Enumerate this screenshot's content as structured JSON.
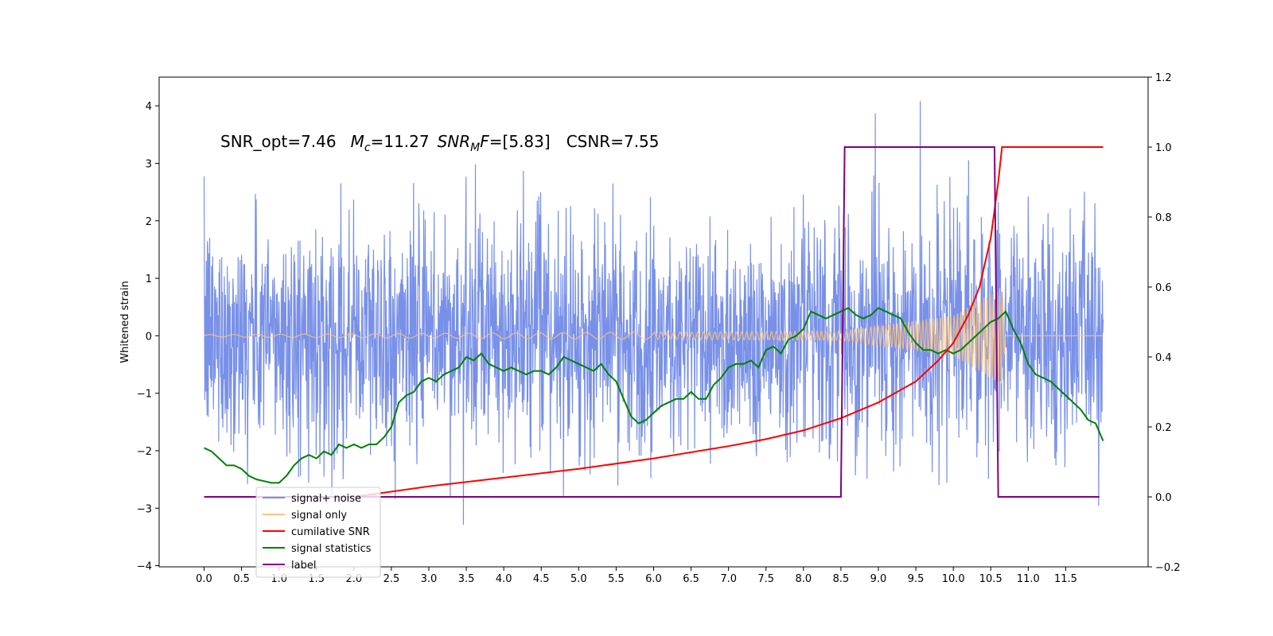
{
  "chart_data": {
    "type": "line",
    "annotation": {
      "snr_opt": "SNR_opt=7.46",
      "mc_var": "M",
      "mc_sub": "c",
      "mc_value": "=11.27",
      "snrmf_var": "SNR",
      "snrmf_sub": "M",
      "snrmf_var2": "F",
      "snrmf_value": "=[5.83]",
      "csnr": "CSNR=7.55"
    },
    "ylabel_left": "Whitened strain",
    "x_ticks": [
      "0.0",
      "0.5",
      "1.0",
      "1.5",
      "2.0",
      "2.5",
      "3.0",
      "3.5",
      "4.0",
      "4.5",
      "5.0",
      "5.5",
      "6.0",
      "6.5",
      "7.0",
      "7.5",
      "8.0",
      "8.5",
      "9.0",
      "9.5",
      "10.0",
      "10.5",
      "11.0",
      "11.5"
    ],
    "xlim": [
      -0.6,
      12.6
    ],
    "y_left_ticks": [
      "4",
      "3",
      "2",
      "1",
      "0",
      "−1",
      "−2",
      "−3",
      "−4"
    ],
    "ylim_left": [
      -4.02,
      4.5
    ],
    "y_right_ticks": [
      "1.2",
      "1.0",
      "0.8",
      "0.6",
      "0.4",
      "0.2",
      "0.0",
      "−0.2"
    ],
    "ylim_right": [
      -0.2,
      1.2
    ],
    "grid": false,
    "legend": {
      "placement": "lower-left",
      "entries": [
        {
          "label": "signal+ noise",
          "color": "#7890e8"
        },
        {
          "label": "signal only",
          "color": "#ffc47a"
        },
        {
          "label": "cumilative SNR",
          "color": "#ff0000"
        },
        {
          "label": "signal statistics",
          "color": "#008000"
        },
        {
          "label": "label",
          "color": "#800080"
        }
      ]
    },
    "series": [
      {
        "name": "signal+ noise",
        "axis": "left",
        "color": "#7890e8",
        "x_range": [
          0.0,
          12.0
        ],
        "approx_envelope": [
          -3.6,
          4.1
        ],
        "approx_std": 1.0
      },
      {
        "name": "signal only",
        "axis": "left",
        "color": "#ffc47a",
        "x_range": [
          0.0,
          12.0
        ],
        "approx_amplitude": {
          "x": [
            0.0,
            8.5,
            10.0,
            10.65,
            10.7,
            12.0
          ],
          "y": [
            0.02,
            0.08,
            0.35,
            0.85,
            0.0,
            0.0
          ]
        }
      },
      {
        "name": "cumilative SNR",
        "axis": "right",
        "color": "#ff0000",
        "x": [
          0.0,
          1.0,
          2.0,
          3.0,
          4.0,
          5.0,
          6.0,
          7.0,
          7.5,
          8.0,
          8.5,
          9.0,
          9.5,
          9.8,
          10.0,
          10.2,
          10.35,
          10.5,
          10.6,
          10.65,
          12.0
        ],
        "y": [
          0.0,
          0.0,
          0.0,
          0.03,
          0.055,
          0.08,
          0.11,
          0.145,
          0.165,
          0.19,
          0.225,
          0.27,
          0.33,
          0.39,
          0.44,
          0.52,
          0.6,
          0.74,
          0.9,
          1.0,
          1.0
        ]
      },
      {
        "name": "signal statistics",
        "axis": "right",
        "color": "#008000",
        "x": [
          0.0,
          0.1,
          0.2,
          0.3,
          0.4,
          0.5,
          0.6,
          0.7,
          0.8,
          0.9,
          1.0,
          1.1,
          1.2,
          1.3,
          1.4,
          1.5,
          1.6,
          1.7,
          1.8,
          1.9,
          2.0,
          2.1,
          2.2,
          2.3,
          2.4,
          2.5,
          2.6,
          2.7,
          2.8,
          2.9,
          3.0,
          3.1,
          3.2,
          3.3,
          3.4,
          3.5,
          3.6,
          3.7,
          3.8,
          3.9,
          4.0,
          4.1,
          4.2,
          4.3,
          4.4,
          4.5,
          4.6,
          4.7,
          4.8,
          4.9,
          5.0,
          5.1,
          5.2,
          5.3,
          5.4,
          5.5,
          5.6,
          5.7,
          5.8,
          5.9,
          6.0,
          6.1,
          6.2,
          6.3,
          6.4,
          6.5,
          6.6,
          6.7,
          6.8,
          6.9,
          7.0,
          7.1,
          7.2,
          7.3,
          7.4,
          7.5,
          7.6,
          7.7,
          7.8,
          7.9,
          8.0,
          8.1,
          8.2,
          8.3,
          8.4,
          8.5,
          8.6,
          8.7,
          8.8,
          8.9,
          9.0,
          9.1,
          9.2,
          9.3,
          9.4,
          9.5,
          9.6,
          9.7,
          9.8,
          9.9,
          10.0,
          10.1,
          10.2,
          10.3,
          10.4,
          10.5,
          10.6,
          10.7,
          10.8,
          10.9,
          11.0,
          11.1,
          11.2,
          11.3,
          11.4,
          11.5,
          11.6,
          11.7,
          11.8,
          11.9,
          12.0
        ],
        "y": [
          0.14,
          0.13,
          0.11,
          0.09,
          0.09,
          0.08,
          0.06,
          0.05,
          0.045,
          0.04,
          0.04,
          0.06,
          0.09,
          0.11,
          0.12,
          0.11,
          0.13,
          0.12,
          0.15,
          0.14,
          0.15,
          0.14,
          0.15,
          0.15,
          0.17,
          0.2,
          0.27,
          0.29,
          0.3,
          0.33,
          0.34,
          0.33,
          0.35,
          0.36,
          0.37,
          0.4,
          0.39,
          0.41,
          0.38,
          0.37,
          0.36,
          0.37,
          0.36,
          0.35,
          0.36,
          0.36,
          0.35,
          0.37,
          0.4,
          0.39,
          0.38,
          0.37,
          0.36,
          0.38,
          0.35,
          0.33,
          0.28,
          0.23,
          0.21,
          0.22,
          0.24,
          0.26,
          0.27,
          0.28,
          0.28,
          0.3,
          0.28,
          0.28,
          0.32,
          0.34,
          0.37,
          0.38,
          0.38,
          0.39,
          0.37,
          0.42,
          0.43,
          0.41,
          0.45,
          0.46,
          0.48,
          0.53,
          0.52,
          0.51,
          0.52,
          0.53,
          0.54,
          0.52,
          0.51,
          0.52,
          0.54,
          0.53,
          0.52,
          0.51,
          0.47,
          0.44,
          0.42,
          0.42,
          0.41,
          0.42,
          0.41,
          0.42,
          0.44,
          0.46,
          0.48,
          0.5,
          0.51,
          0.53,
          0.48,
          0.44,
          0.38,
          0.35,
          0.34,
          0.33,
          0.31,
          0.29,
          0.27,
          0.25,
          0.22,
          0.21,
          0.16
        ]
      },
      {
        "name": "label",
        "axis": "right",
        "color": "#800080",
        "x": [
          0.0,
          8.5,
          8.55,
          10.55,
          10.6,
          11.95
        ],
        "y": [
          0.0,
          0.0,
          1.0,
          1.0,
          0.0,
          0.0
        ]
      }
    ]
  }
}
